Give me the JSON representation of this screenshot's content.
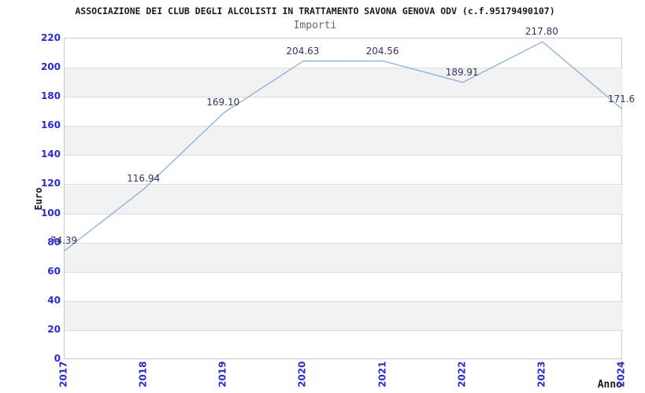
{
  "header": {
    "title": "ASSOCIAZIONE DEI CLUB DEGLI ALCOLISTI IN TRATTAMENTO SAVONA GENOVA ODV (c.f.95179490107)",
    "subtitle": "Importi"
  },
  "chart_data": {
    "type": "line",
    "title": "Importi",
    "xlabel": "Anno",
    "ylabel": "Euro",
    "x": [
      2017,
      2018,
      2019,
      2020,
      2021,
      2022,
      2023,
      2024
    ],
    "values": [
      74.39,
      116.94,
      169.1,
      204.63,
      204.56,
      189.91,
      217.8,
      171.6
    ],
    "point_labels": [
      "74.39",
      "116.94",
      "169.10",
      "204.63",
      "204.56",
      "189.91",
      "217.80",
      "171.6"
    ],
    "xticks": [
      "2017",
      "2018",
      "2019",
      "2020",
      "2021",
      "2022",
      "2023",
      "2024"
    ],
    "yticks": [
      0,
      20,
      40,
      60,
      80,
      100,
      120,
      140,
      160,
      180,
      200,
      220
    ],
    "ylim": [
      0,
      220
    ],
    "ytick_step": 20,
    "grid": "horizontal-alternating-bands",
    "legend": "none",
    "colors": {
      "line": "#87afdc",
      "tick_label": "#2b2bcc",
      "point_label": "#333366",
      "band": "#f2f2f2",
      "gridline": "#dddddd",
      "plot_border": "#c8c8c8",
      "title": "#1a1a1a",
      "subtitle": "#666666",
      "axis_title": "#1a1a1a"
    }
  }
}
